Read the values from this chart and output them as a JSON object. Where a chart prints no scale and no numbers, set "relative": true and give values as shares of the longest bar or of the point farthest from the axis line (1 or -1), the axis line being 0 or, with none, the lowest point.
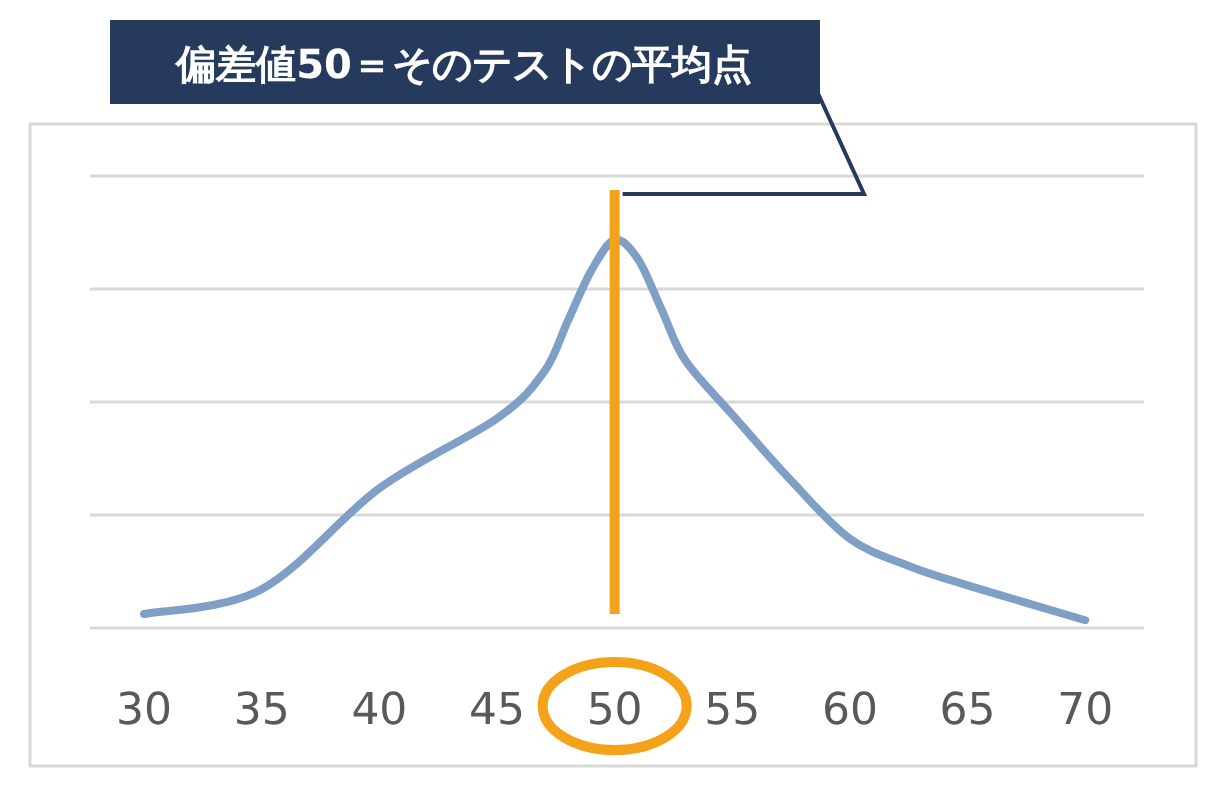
{
  "chart_data": {
    "type": "line",
    "relative": true,
    "grid": "y",
    "marker": "none",
    "line_style": "solid",
    "x": [
      30,
      35,
      40,
      45,
      47,
      48,
      49,
      50,
      51,
      52,
      53,
      55,
      57.5,
      60,
      62.5,
      65,
      70
    ],
    "xlim": [
      27.7,
      72.5
    ],
    "xticks": [
      30,
      35,
      40,
      45,
      50,
      55,
      60,
      65,
      70
    ],
    "tick_labels": "x",
    "series": [
      {
        "color": "#7f9fc7",
        "values": [
          0.036,
          0.1,
          0.36,
          0.54,
          0.66,
          0.79,
          0.92,
          1,
          0.95,
          0.82,
          0.69,
          0.55,
          0.38,
          0.23,
          0.16,
          0.11,
          0.02
        ]
      }
    ],
    "annotations": [
      "偏差値50＝そのテストの平均点"
    ],
    "ref_lines": [
      {
        "axis": "x",
        "value": 50,
        "color": "#f5a21b",
        "line_style": "solid"
      }
    ]
  }
}
